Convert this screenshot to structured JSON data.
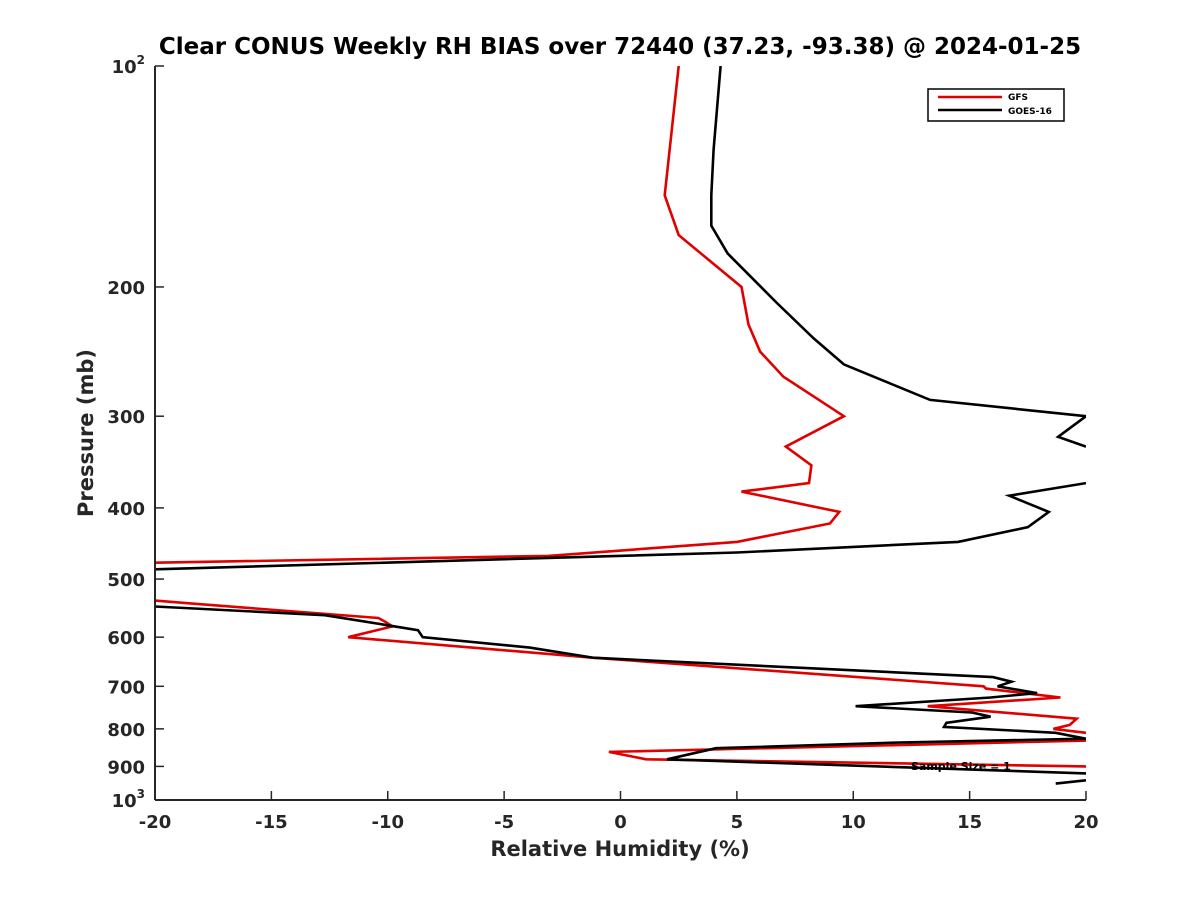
{
  "chart_data": {
    "type": "line",
    "title": "Clear CONUS Weekly RH BIAS over 72440 (37.23, -93.38) @ 2024-01-25",
    "xlabel": "Relative Humidity (%)",
    "ylabel": "Pressure (mb)",
    "xlim": [
      -20,
      20
    ],
    "ylim": [
      100,
      1000
    ],
    "yscale": "log",
    "y_reversed": true,
    "x_ticks": [
      -20,
      -15,
      -10,
      -5,
      0,
      5,
      10,
      15,
      20
    ],
    "x_tick_labels": [
      "-20",
      "-15",
      "-10",
      "-5",
      "0",
      "5",
      "10",
      "15",
      "20"
    ],
    "y_ticks": [
      100,
      200,
      300,
      400,
      500,
      600,
      700,
      800,
      900,
      1000
    ],
    "y_tick_labels": [
      {
        "base": "10",
        "exp": "2"
      },
      {
        "base": "200",
        "exp": ""
      },
      {
        "base": "300",
        "exp": ""
      },
      {
        "base": "400",
        "exp": ""
      },
      {
        "base": "500",
        "exp": ""
      },
      {
        "base": "600",
        "exp": ""
      },
      {
        "base": "700",
        "exp": ""
      },
      {
        "base": "800",
        "exp": ""
      },
      {
        "base": "900",
        "exp": ""
      },
      {
        "base": "10",
        "exp": "3"
      }
    ],
    "grid": false,
    "legend_position": "top-right",
    "annotation": "Sample Size = 1",
    "series": [
      {
        "name": "GFS",
        "color": "#e00000",
        "segments": [
          {
            "x": [
              2.5,
              1.9,
              2.5,
              5.2,
              5.5,
              6.0,
              7.0,
              9.6,
              7.1,
              8.2,
              8.1,
              5.2,
              9.4,
              9.0,
              5.0,
              -3.1,
              -20.0
            ],
            "y": [
              100,
              150,
              170,
              200,
              225,
              245,
              265,
              300,
              330,
              350,
              370,
              380,
              405,
              420,
              445,
              465,
              475
            ]
          },
          {
            "x": [
              -20.0,
              -18.4,
              -10.4,
              -10.1,
              -9.8,
              -11.7,
              -1.2,
              15.6,
              15.7,
              18.9,
              13.2,
              19.6,
              19.3,
              18.6,
              20.0
            ],
            "y": [
              535,
              540,
              565,
              572,
              580,
              600,
              640,
              700,
              705,
              725,
              745,
              775,
              790,
              800,
              810
            ]
          },
          {
            "x": [
              20.0,
              -0.5,
              1.1,
              20.0
            ],
            "y": [
              830,
              860,
              880,
              900
            ]
          }
        ]
      },
      {
        "name": "GOES-16",
        "color": "#000000",
        "segments": [
          {
            "x": [
              4.3,
              4.0,
              3.9,
              3.9,
              4.6,
              6.7,
              8.3,
              9.6,
              13.3,
              20.0,
              18.8,
              20.0
            ],
            "y": [
              100,
              130,
              150,
              165,
              180,
              210,
              235,
              255,
              285,
              300,
              320,
              330
            ]
          },
          {
            "x": [
              20.0,
              16.7,
              18.4,
              17.5,
              14.5,
              5.0,
              -20.0
            ],
            "y": [
              370,
              385,
              405,
              425,
              445,
              460,
              485
            ]
          },
          {
            "x": [
              -20.0,
              -12.7,
              -10.0,
              -8.7,
              -8.5,
              -3.9,
              -1.2,
              16.0,
              16.8,
              16.2,
              17.9,
              15.9,
              10.1,
              15.1,
              15.9,
              14.0,
              13.9,
              18.7,
              20.0,
              12.0,
              4.1,
              2.0,
              20.0
            ],
            "y": [
              545,
              560,
              578,
              587,
              600,
              620,
              640,
              680,
              690,
              700,
              715,
              725,
              745,
              760,
              770,
              785,
              795,
              810,
              825,
              835,
              850,
              880,
              920
            ]
          },
          {
            "x": [
              20.0,
              18.7
            ],
            "y": [
              940,
              950
            ]
          }
        ]
      }
    ]
  }
}
